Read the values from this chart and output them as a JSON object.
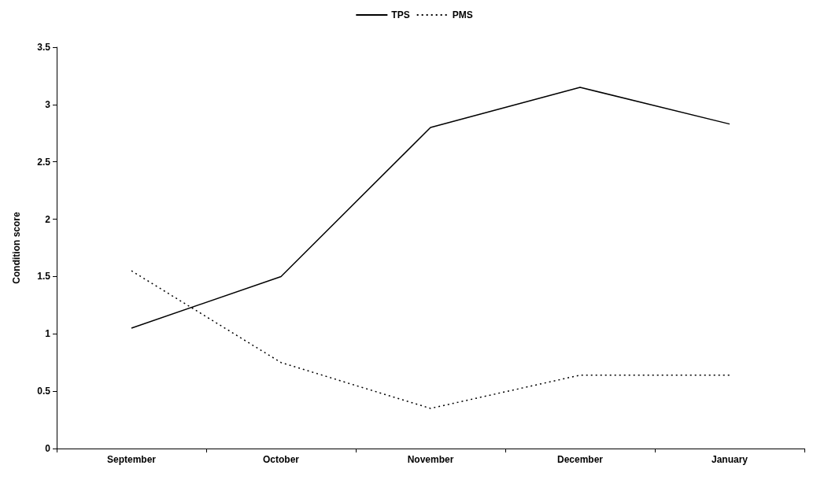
{
  "chart_data": {
    "type": "line",
    "ylabel": "Condition score",
    "categories": [
      "September",
      "October",
      "November",
      "December",
      "January"
    ],
    "series": [
      {
        "name": "TPS",
        "color": "#000000",
        "line_style": "solid",
        "values": [
          1.05,
          1.5,
          2.8,
          3.15,
          2.83
        ]
      },
      {
        "name": "PMS",
        "color": "#000000",
        "line_style": "dotted",
        "values": [
          1.55,
          0.75,
          0.35,
          0.64,
          0.64
        ]
      }
    ],
    "ylim": [
      0,
      3.5
    ],
    "yticks": [
      0,
      0.5,
      1,
      1.5,
      2,
      2.5,
      3,
      3.5
    ],
    "grid": false,
    "legend": "top",
    "marker": "none"
  }
}
